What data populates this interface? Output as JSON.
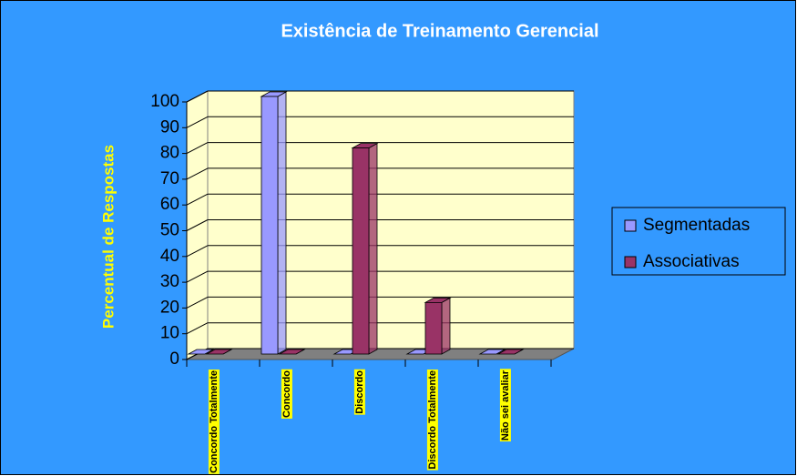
{
  "chart_data": {
    "type": "bar3d",
    "title": "Existência de Treinamento  Gerencial",
    "y_label": "Percentual de Respostas",
    "categories": [
      "Concordo Totalmente",
      "Concordo",
      "Discordo",
      "Discordo Totalmente",
      "Não sei avaliar"
    ],
    "series": [
      {
        "name": "Segmentadas",
        "color": "#9999ff",
        "values": [
          0,
          100,
          0,
          0,
          0
        ]
      },
      {
        "name": "Associativas",
        "color": "#993366",
        "values": [
          0,
          0,
          80,
          20,
          0
        ]
      }
    ],
    "ylim": [
      0,
      100
    ],
    "yticks": [
      0,
      10,
      20,
      30,
      40,
      50,
      60,
      70,
      80,
      90,
      100
    ],
    "grid": true,
    "legend": "right"
  }
}
